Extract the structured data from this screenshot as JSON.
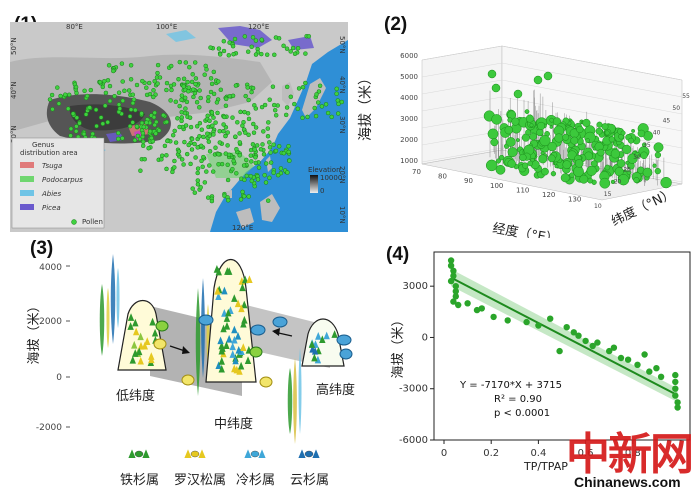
{
  "panels": {
    "p1": {
      "label": "(1)",
      "top_lon_ticks": [
        "80°E",
        "100°E",
        "120°E"
      ],
      "bottom_lon_tick": "120°E",
      "lat_ticks_left": [
        "50°N",
        "40°N",
        "30°N"
      ],
      "lat_ticks_right": [
        "50°N",
        "40°N",
        "30°N",
        "20°N",
        "10°N"
      ],
      "legend": {
        "title": "Genus distribution area",
        "items": [
          {
            "name": "Tsuga",
            "color": "#e07a7a"
          },
          {
            "name": "Podocarpus",
            "color": "#6fd66f"
          },
          {
            "name": "Abies",
            "color": "#6fc4e6"
          },
          {
            "name": "Picea",
            "color": "#6a5acd"
          }
        ],
        "pollen": "Pollen"
      },
      "elevation": {
        "title": "Elevation",
        "max": "10000",
        "min": "0"
      }
    },
    "p2": {
      "label": "(2)",
      "z_label": "海拔（米）",
      "x_label": "经度（°E）",
      "y_label": "纬度（°N）",
      "z_ticks": [
        "6000",
        "5000",
        "4000",
        "3000",
        "2000",
        "1000"
      ],
      "x_ticks": [
        "70",
        "80",
        "90",
        "100",
        "110",
        "120",
        "130"
      ],
      "y_ticks": [
        "10",
        "15",
        "20",
        "25",
        "30",
        "35",
        "40",
        "45",
        "50",
        "55"
      ]
    },
    "p3": {
      "label": "(3)",
      "y_label": "海拔（米）",
      "y_ticks": [
        "4000",
        "2000",
        "0",
        "-2000"
      ],
      "regions": {
        "low": "低纬度",
        "mid": "中纬度",
        "high": "高纬度"
      },
      "genera": [
        "铁杉属",
        "罗汉松属",
        "冷杉属",
        "云杉属"
      ]
    },
    "p4": {
      "label": "(4)",
      "y_label": "海拔（米）",
      "x_label": "TP/TPAP",
      "equation": "Y = -7170*X + 3715",
      "r2": "R² = 0.90",
      "p": "p < 0.0001",
      "y_ticks": [
        "3000",
        "0",
        "-3000",
        "-6000"
      ],
      "x_ticks": [
        "0",
        "0.2",
        "0.4",
        "0.6",
        "0.8"
      ]
    }
  },
  "watermark": {
    "text": "中新网",
    "site": "Chinanews.com"
  },
  "chart_data": {
    "type": "scatter",
    "xlabel": "TP/TPAP",
    "ylabel": "海拔（米）",
    "xlim": [
      0,
      1.0
    ],
    "ylim": [
      -6000,
      5000
    ],
    "regression": {
      "slope": -7170,
      "intercept": 3715,
      "r2": 0.9
    },
    "points": [
      [
        0.03,
        4500
      ],
      [
        0.03,
        4200
      ],
      [
        0.04,
        3900
      ],
      [
        0.04,
        3600
      ],
      [
        0.03,
        3300
      ],
      [
        0.05,
        3000
      ],
      [
        0.05,
        2700
      ],
      [
        0.05,
        2400
      ],
      [
        0.04,
        2100
      ],
      [
        0.06,
        1900
      ],
      [
        0.1,
        2000
      ],
      [
        0.14,
        1600
      ],
      [
        0.16,
        1700
      ],
      [
        0.21,
        1200
      ],
      [
        0.27,
        1000
      ],
      [
        0.35,
        900
      ],
      [
        0.4,
        700
      ],
      [
        0.45,
        1100
      ],
      [
        0.49,
        -800
      ],
      [
        0.52,
        600
      ],
      [
        0.55,
        300
      ],
      [
        0.57,
        100
      ],
      [
        0.6,
        -200
      ],
      [
        0.63,
        -500
      ],
      [
        0.65,
        -300
      ],
      [
        0.7,
        -800
      ],
      [
        0.72,
        -600
      ],
      [
        0.75,
        -1200
      ],
      [
        0.78,
        -1300
      ],
      [
        0.82,
        -1600
      ],
      [
        0.85,
        -1000
      ],
      [
        0.87,
        -2000
      ],
      [
        0.9,
        -1800
      ],
      [
        0.92,
        -2300
      ],
      [
        0.98,
        -2200
      ],
      [
        0.98,
        -2600
      ],
      [
        0.98,
        -3000
      ],
      [
        0.98,
        -3400
      ],
      [
        0.99,
        -3800
      ],
      [
        0.99,
        -4100
      ]
    ]
  }
}
